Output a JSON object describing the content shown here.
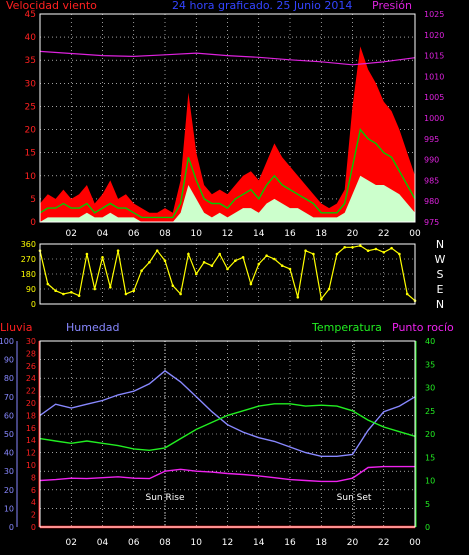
{
  "colors": {
    "wind_label": "#ff2020",
    "title": "#3344ff",
    "pressure": "#dd22dd",
    "rain": "#ff2020",
    "humidity": "#8888ff",
    "temperature": "#22ee22",
    "dewpoint": "#ee22ee",
    "direction": "#ffff00",
    "axis": "#ffffff"
  },
  "header": {
    "wind_label": "Velocidad viento",
    "title": "24 hora graficado. 25 Junio 2014",
    "pressure_label": "Presión"
  },
  "lower_header": {
    "rain_label": "Lluvia",
    "humidity_label": "Humedad",
    "temperature_label": "Temperatura",
    "dewpoint_label": "Punto rocío"
  },
  "x_ticks": [
    "02",
    "04",
    "06",
    "08",
    "10",
    "12",
    "14",
    "16",
    "18",
    "20",
    "22",
    "00"
  ],
  "direction_letters": [
    "N",
    "W",
    "S",
    "E",
    "N"
  ],
  "annotations": {
    "sunrise": "Sun Rise",
    "sunset": "Sun Set"
  },
  "chart_data": [
    {
      "type": "area",
      "name": "wind",
      "x_hours": [
        0,
        0.5,
        1,
        1.5,
        2,
        2.5,
        3,
        3.5,
        4,
        4.5,
        5,
        5.5,
        6,
        6.5,
        7,
        7.5,
        8,
        8.5,
        9,
        9.5,
        10,
        10.5,
        11,
        11.5,
        12,
        12.5,
        13,
        13.5,
        14,
        14.5,
        15,
        15.5,
        16,
        16.5,
        17,
        17.5,
        18,
        18.5,
        19,
        19.5,
        20,
        20.5,
        21,
        21.5,
        22,
        22.5,
        23,
        23.5,
        24
      ],
      "series": [
        {
          "name": "Velocidad viento",
          "values": [
            4,
            6,
            5,
            7,
            5,
            6,
            8,
            4,
            6,
            9,
            5,
            6,
            4,
            3,
            2,
            2,
            3,
            2,
            9,
            28,
            15,
            8,
            6,
            7,
            6,
            8,
            10,
            11,
            9,
            13,
            17,
            14,
            12,
            10,
            8,
            6,
            4,
            3,
            4,
            7,
            25,
            38,
            33,
            30,
            26,
            24,
            20,
            15,
            10
          ]
        },
        {
          "name": "gust-mean",
          "values": [
            2,
            3,
            3,
            4,
            3,
            3,
            4,
            2,
            3,
            4,
            3,
            3,
            2,
            1,
            1,
            1,
            1,
            1,
            4,
            14,
            9,
            5,
            4,
            4,
            3,
            5,
            6,
            7,
            5,
            8,
            10,
            8,
            7,
            6,
            5,
            4,
            2,
            2,
            2,
            4,
            12,
            20,
            18,
            17,
            15,
            14,
            11,
            8,
            5
          ]
        },
        {
          "name": "gust-min",
          "values": [
            0,
            1,
            1,
            1,
            1,
            1,
            2,
            1,
            1,
            2,
            1,
            1,
            1,
            0,
            0,
            0,
            0,
            0,
            2,
            8,
            5,
            2,
            1,
            2,
            1,
            2,
            3,
            3,
            2,
            4,
            5,
            4,
            3,
            3,
            2,
            1,
            1,
            1,
            1,
            2,
            6,
            10,
            9,
            8,
            8,
            7,
            6,
            4,
            2
          ]
        }
      ],
      "y_left": {
        "label": "Velocidad viento",
        "ticks": [
          0,
          5,
          10,
          15,
          20,
          25,
          30,
          35,
          40,
          45
        ],
        "range": [
          0,
          45
        ]
      },
      "pressure": {
        "name": "Presión",
        "y_right": {
          "ticks": [
            975,
            980,
            985,
            990,
            995,
            1000,
            1005,
            1010,
            1015,
            1020,
            1025
          ],
          "range": [
            975,
            1025
          ]
        },
        "x_hours": [
          0,
          2,
          4,
          6,
          8,
          10,
          12,
          14,
          16,
          18,
          20,
          22,
          24
        ],
        "values": [
          1016,
          1015.5,
          1015,
          1014.8,
          1015.2,
          1015.6,
          1015,
          1014.6,
          1014,
          1013.5,
          1012.8,
          1013.5,
          1014.5
        ]
      }
    },
    {
      "type": "scatter",
      "name": "wind-direction",
      "y_ticks": [
        0,
        90,
        180,
        270,
        360
      ],
      "range": [
        0,
        360
      ],
      "x_hours": [
        0,
        0.5,
        1,
        1.5,
        2,
        2.5,
        3,
        3.5,
        4,
        4.5,
        5,
        5.5,
        6,
        6.5,
        7,
        7.5,
        8,
        8.5,
        9,
        9.5,
        10,
        10.5,
        11,
        11.5,
        12,
        12.5,
        13,
        13.5,
        14,
        14.5,
        15,
        15.5,
        16,
        16.5,
        17,
        17.5,
        18,
        18.5,
        19,
        19.5,
        20,
        20.5,
        21,
        21.5,
        22,
        22.5,
        23,
        23.5,
        24
      ],
      "values": [
        320,
        120,
        80,
        60,
        70,
        50,
        300,
        90,
        280,
        100,
        320,
        60,
        80,
        200,
        250,
        320,
        260,
        110,
        60,
        300,
        180,
        250,
        230,
        300,
        210,
        260,
        280,
        120,
        240,
        290,
        270,
        230,
        210,
        40,
        320,
        300,
        30,
        90,
        300,
        340,
        340,
        350,
        320,
        330,
        310,
        335,
        300,
        60,
        20
      ]
    },
    {
      "type": "line",
      "name": "climate",
      "x_hours": [
        0,
        1,
        2,
        3,
        4,
        5,
        6,
        7,
        8,
        9,
        10,
        11,
        12,
        13,
        14,
        15,
        16,
        17,
        18,
        19,
        20,
        21,
        22,
        23,
        24
      ],
      "series": [
        {
          "name": "Lluvia",
          "axis": "rain",
          "values": [
            0,
            0,
            0,
            0,
            0,
            0,
            0,
            0,
            0,
            0,
            0,
            0,
            0,
            0,
            0,
            0,
            0,
            0,
            0,
            0,
            0,
            0,
            0,
            0,
            0
          ]
        },
        {
          "name": "Humedad",
          "axis": "humidity",
          "values": [
            60,
            66,
            64,
            66,
            68,
            71,
            73,
            77,
            84,
            78,
            70,
            62,
            55,
            51,
            48,
            46,
            43,
            40,
            38,
            38,
            39,
            52,
            62,
            65,
            70
          ]
        },
        {
          "name": "Temperatura",
          "axis": "temperature",
          "values": [
            19,
            18.5,
            18,
            18.5,
            18,
            17.5,
            16.8,
            16.5,
            17,
            19,
            21,
            22.5,
            24,
            25,
            26,
            26.5,
            26.5,
            26,
            26.2,
            26,
            25,
            23,
            21.5,
            20.5,
            19.5
          ]
        },
        {
          "name": "Punto rocío",
          "axis": "temperature",
          "values": [
            10,
            10.2,
            10.5,
            10.4,
            10.6,
            10.8,
            10.5,
            10.4,
            12,
            12.4,
            12,
            11.8,
            11.5,
            11.3,
            11,
            10.6,
            10.2,
            10,
            9.8,
            9.8,
            10.5,
            12.8,
            13,
            13,
            13
          ]
        }
      ],
      "axes": {
        "humidity": {
          "ticks": [
            0,
            10,
            20,
            30,
            40,
            50,
            60,
            70,
            80,
            90,
            100
          ],
          "range": [
            0,
            100
          ]
        },
        "rain": {
          "ticks": [
            0,
            2,
            4,
            6,
            8,
            10,
            12,
            14,
            16,
            18,
            20,
            22,
            24,
            26,
            28,
            30
          ],
          "range": [
            0,
            30
          ]
        },
        "temperature": {
          "ticks": [
            0,
            5,
            10,
            15,
            20,
            25,
            30,
            35,
            40
          ],
          "range": [
            0,
            40
          ]
        }
      },
      "sunrise_hour": 8,
      "sunset_hour": 20.1
    }
  ]
}
